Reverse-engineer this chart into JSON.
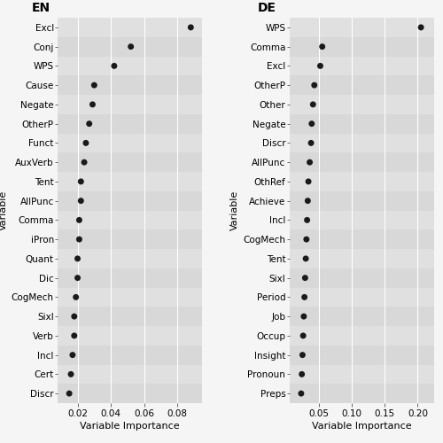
{
  "en": {
    "labels": [
      "Excl",
      "Conj",
      "WPS",
      "Cause",
      "Negate",
      "OtherP",
      "Funct",
      "AuxVerb",
      "Tent",
      "AllPunc",
      "Comma",
      "iPron",
      "Quant",
      "Dic",
      "CogMech",
      "Sixl",
      "Verb",
      "Incl",
      "Cert",
      "Discr"
    ],
    "values": [
      0.088,
      0.052,
      0.042,
      0.03,
      0.029,
      0.027,
      0.025,
      0.024,
      0.022,
      0.022,
      0.021,
      0.021,
      0.02,
      0.02,
      0.019,
      0.018,
      0.018,
      0.017,
      0.016,
      0.015
    ],
    "xlim": [
      0.008,
      0.095
    ],
    "xticks": [
      0.02,
      0.04,
      0.06,
      0.08
    ],
    "xtick_labels": [
      "0.02",
      "0.04",
      "0.06",
      "0.08"
    ],
    "xlabel": "Variable Importance",
    "ylabel": "Variable",
    "title": "EN"
  },
  "de": {
    "labels": [
      "WPS",
      "Comma",
      "Excl",
      "OtherP",
      "Other",
      "Negate",
      "Discr",
      "AllPunc",
      "OthRef",
      "Achieve",
      "Incl",
      "CogMech",
      "Tent",
      "Sixl",
      "Period",
      "Job",
      "Occup",
      "Insight",
      "Pronoun",
      "Preps"
    ],
    "values": [
      0.205,
      0.055,
      0.052,
      0.043,
      0.041,
      0.039,
      0.038,
      0.036,
      0.034,
      0.033,
      0.032,
      0.031,
      0.03,
      0.029,
      0.028,
      0.027,
      0.026,
      0.025,
      0.024,
      0.023
    ],
    "xlim": [
      0.005,
      0.225
    ],
    "xticks": [
      0.05,
      0.1,
      0.15,
      0.2
    ],
    "xtick_labels": [
      "0.05",
      "0.10",
      "0.15",
      "0.20"
    ],
    "xlabel": "Variable Importance",
    "ylabel": "Variable",
    "title": "DE"
  },
  "dot_color": "#1a1a1a",
  "dot_size": 25,
  "panel_bg": "#ebebeb",
  "stripe_light": "#e0e0e0",
  "stripe_dark": "#d8d8d8",
  "fig_bg": "#f5f5f5",
  "title_fontsize": 10,
  "label_fontsize": 7.5,
  "tick_fontsize": 7.5,
  "axis_label_fontsize": 8
}
